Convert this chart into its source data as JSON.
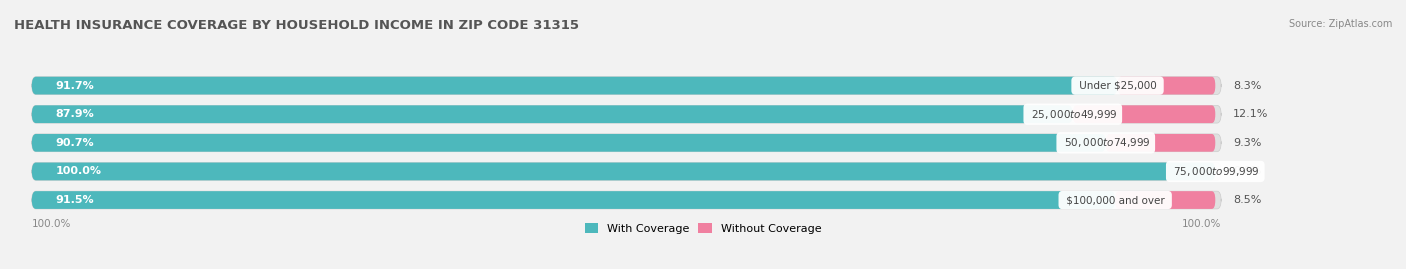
{
  "title": "HEALTH INSURANCE COVERAGE BY HOUSEHOLD INCOME IN ZIP CODE 31315",
  "source": "Source: ZipAtlas.com",
  "categories": [
    "Under $25,000",
    "$25,000 to $49,999",
    "$50,000 to $74,999",
    "$75,000 to $99,999",
    "$100,000 and over"
  ],
  "with_coverage": [
    91.7,
    87.9,
    90.7,
    100.0,
    91.5
  ],
  "without_coverage": [
    8.3,
    12.1,
    9.3,
    0.0,
    8.5
  ],
  "coverage_color": "#4db8bc",
  "no_coverage_color": "#f080a0",
  "no_coverage_color_light": "#f5b8cc",
  "bg_color": "#f2f2f2",
  "bar_bg_color": "#e0e0e0",
  "bar_shadow_color": "#d0d0d0",
  "title_fontsize": 9.5,
  "label_fontsize": 8,
  "cat_fontsize": 7.5,
  "source_fontsize": 7,
  "bar_height": 0.62,
  "figsize": [
    14.06,
    2.69
  ],
  "dpi": 100,
  "legend_labels": [
    "With Coverage",
    "Without Coverage"
  ],
  "bottom_label": "100.0%"
}
